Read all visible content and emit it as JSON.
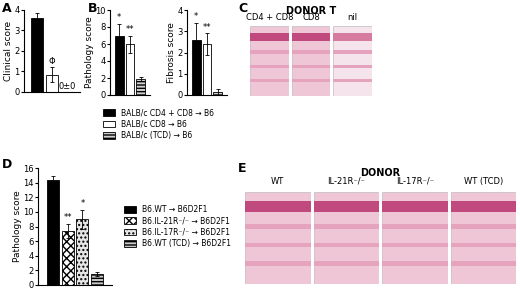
{
  "chart_data": [
    {
      "type": "bar",
      "panel": "A",
      "y_label": "Clinical score",
      "categories": [
        null
      ],
      "ylim": [
        0,
        4
      ],
      "yticks": [
        0,
        1,
        2,
        3,
        4
      ],
      "tick_labels": "y",
      "series": [
        {
          "color": "#000000",
          "values": [
            3.6
          ],
          "errors": [
            0.25
          ]
        },
        {
          "color": "#ffffff",
          "values": [
            0.85
          ],
          "errors": [
            0.35
          ],
          "annotation": "Φ"
        },
        {
          "color": "#ffffff",
          "values": [
            0
          ],
          "errors": [
            0
          ],
          "annotation": "0±0"
        }
      ]
    },
    {
      "type": "bar",
      "panel": "B",
      "y_label": "Pathology score",
      "categories": [
        null
      ],
      "ylim": [
        0,
        10
      ],
      "yticks": [
        0,
        2,
        4,
        6,
        8,
        10
      ],
      "tick_labels": "y",
      "legend": "upper left",
      "series": [
        {
          "name": "BALB/c CD4 + CD8 → B6",
          "color": "#000000",
          "values": [
            6.9
          ],
          "errors": [
            1.5
          ],
          "annotation": "*"
        },
        {
          "name": "BALB/c CD8 → B6",
          "color": "#ffffff",
          "values": [
            6.0
          ],
          "errors": [
            1.0
          ],
          "annotation": "**"
        },
        {
          "name": "BALB/c (TCD) → B6",
          "color": "#d0d0d0",
          "values": [
            1.9
          ],
          "errors": [
            0.2
          ]
        }
      ]
    },
    {
      "type": "bar",
      "y_label": "Fibrosis score",
      "categories": [
        null
      ],
      "ylim": [
        0,
        4
      ],
      "yticks": [
        0,
        1,
        2,
        3,
        4
      ],
      "tick_labels": "y",
      "series": [
        {
          "color": "#000000",
          "values": [
            2.6
          ],
          "errors": [
            0.8
          ],
          "annotation": "*"
        },
        {
          "color": "#ffffff",
          "values": [
            2.4
          ],
          "errors": [
            0.5
          ],
          "annotation": "**"
        },
        {
          "color": "#d0d0d0",
          "values": [
            0.15
          ],
          "errors": [
            0.15
          ]
        }
      ]
    },
    {
      "type": "bar",
      "panel": "D",
      "y_label": "Pathology score",
      "categories": [
        null
      ],
      "ylim": [
        0,
        16
      ],
      "yticks": [
        0,
        2,
        4,
        6,
        8,
        10,
        12,
        14,
        16
      ],
      "tick_labels": "y",
      "legend": "center left",
      "series": [
        {
          "name": "B6.WT → B6D2F1",
          "color": "#000000",
          "values": [
            14.4
          ],
          "errors": [
            0.5
          ]
        },
        {
          "name": "B6.IL-21R⁻/⁻ → B6D2F1",
          "color": "#ffffff",
          "values": [
            7.4
          ],
          "errors": [
            1.0
          ],
          "annotation": "**"
        },
        {
          "name": "B6.IL-17R⁻/⁻ → B6D2F1",
          "color": "#e6e6e6",
          "values": [
            9.0
          ],
          "errors": [
            1.3
          ],
          "annotation": "*"
        },
        {
          "name": "B6.WT (TCD) → B6D2F1",
          "color": "#c8c8c8",
          "values": [
            1.5
          ],
          "errors": [
            0.3
          ]
        }
      ]
    }
  ],
  "image_panels": [
    {
      "panel": "C",
      "header": "DONOR T",
      "labels": [
        "CD4 + CD8",
        "CD8",
        "nil"
      ]
    },
    {
      "panel": "E",
      "header": "DONOR",
      "labels": [
        "WT",
        "IL-21R⁻/⁻",
        "IL-17R⁻/⁻",
        "WT (TCD)"
      ]
    }
  ]
}
